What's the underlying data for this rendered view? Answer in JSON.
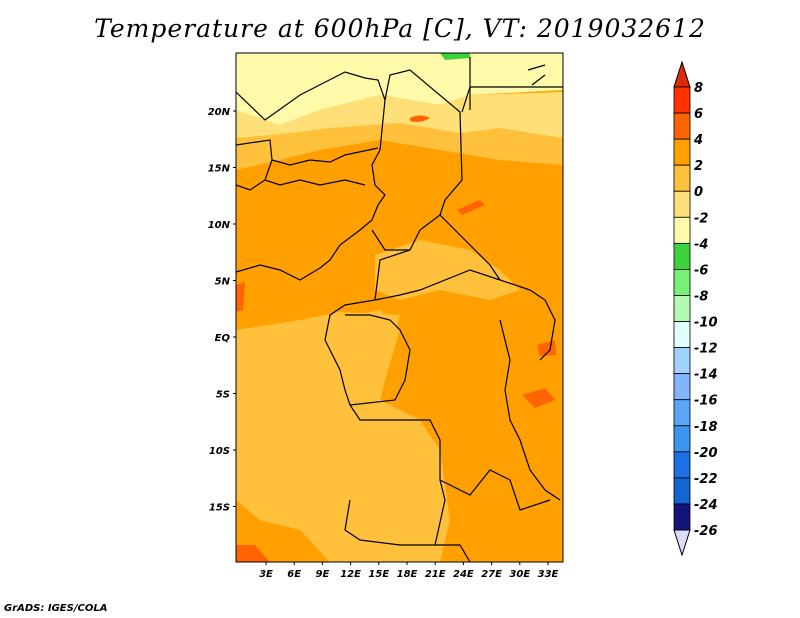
{
  "title": "Temperature at 600hPa [C], VT: 2019032612",
  "footer": "GrADS: IGES/COLA",
  "lat_ticks": [
    "20N",
    "15N",
    "10N",
    "5N",
    "EQ",
    "5S",
    "10S",
    "15S"
  ],
  "lon_ticks": [
    "3E",
    "6E",
    "9E",
    "12E",
    "15E",
    "18E",
    "21E",
    "24E",
    "27E",
    "30E",
    "33E"
  ],
  "colorbar": {
    "labels": [
      "8",
      "6",
      "4",
      "2",
      "0",
      "-2",
      "-4",
      "-6",
      "-8",
      "-10",
      "-12",
      "-14",
      "-16",
      "-18",
      "-20",
      "-22",
      "-24",
      "-26"
    ],
    "above_color": "#dc2a0a",
    "below_color": "#dcdcff",
    "colors": [
      "#ff3200",
      "#ff6400",
      "#ffa000",
      "#ffc03c",
      "#ffe078",
      "#fffaaa",
      "#3cd23c",
      "#78f078",
      "#b4fab4",
      "#e1ffff",
      "#a0d2ff",
      "#82b4ff",
      "#5aa5f5",
      "#3c96f0",
      "#1e6ee6",
      "#1464d2",
      "#14147a"
    ]
  },
  "map_colors": {
    "orange": "#ffa000",
    "light_orange": "#ffc03c",
    "yellow": "#ffe078",
    "pale": "#fffaaa",
    "hot": "#ff6400",
    "green": "#3cd23c"
  }
}
